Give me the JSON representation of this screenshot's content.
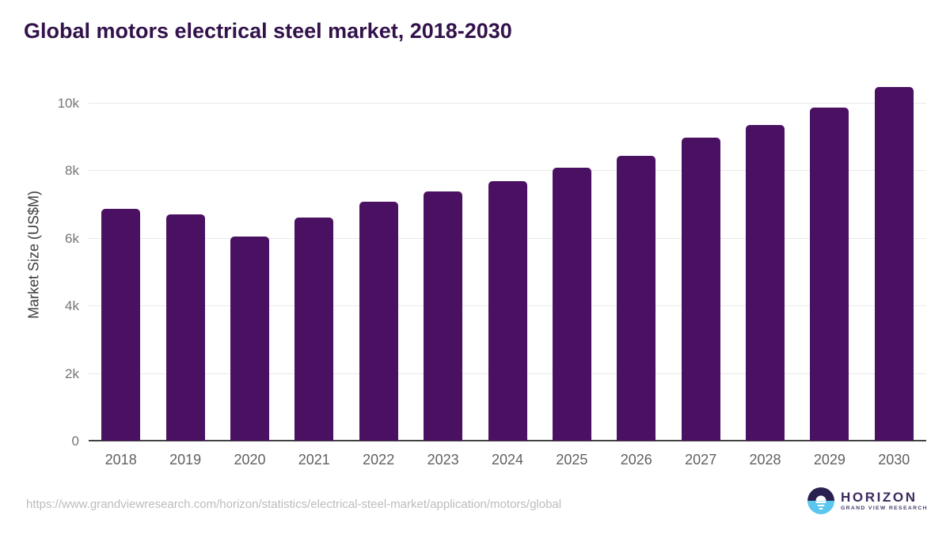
{
  "title": "Global motors electrical steel market, 2018-2030",
  "footer": {
    "source_url": "https://www.grandviewresearch.com/horizon/statistics/electrical-steel-market/application/motors/global",
    "logo_name": "HORIZON",
    "logo_subtitle": "GRAND VIEW RESEARCH"
  },
  "colors": {
    "bar": "#4a1061",
    "title": "#33124b",
    "grid": "#e9e9e9",
    "axis": "#424242",
    "y_tick_label": "#757575",
    "x_tick_label": "#616161",
    "url_text": "#bcbcbc",
    "logo_navy": "#2b2150",
    "logo_blue": "#5bc6ee",
    "logo_text": "#3b2a5e"
  },
  "chart_data": {
    "type": "bar",
    "title": "Global motors electrical steel market, 2018-2030",
    "xlabel": "",
    "ylabel": "Market Size (US$M)",
    "categories": [
      "2018",
      "2019",
      "2020",
      "2021",
      "2022",
      "2023",
      "2024",
      "2025",
      "2026",
      "2027",
      "2028",
      "2029",
      "2030"
    ],
    "values": [
      6850,
      6690,
      6040,
      6590,
      7060,
      7370,
      7670,
      8060,
      8430,
      8950,
      9340,
      9840,
      10450
    ],
    "ylim": [
      0,
      10690
    ],
    "yticks": [
      {
        "label": "0",
        "value": 0
      },
      {
        "label": "2k",
        "value": 2000
      },
      {
        "label": "4k",
        "value": 4000
      },
      {
        "label": "6k",
        "value": 6000
      },
      {
        "label": "8k",
        "value": 8000
      },
      {
        "label": "10k",
        "value": 10000
      }
    ],
    "grid": "horizontal",
    "legend": "none",
    "bar_color": "#4a1061"
  }
}
